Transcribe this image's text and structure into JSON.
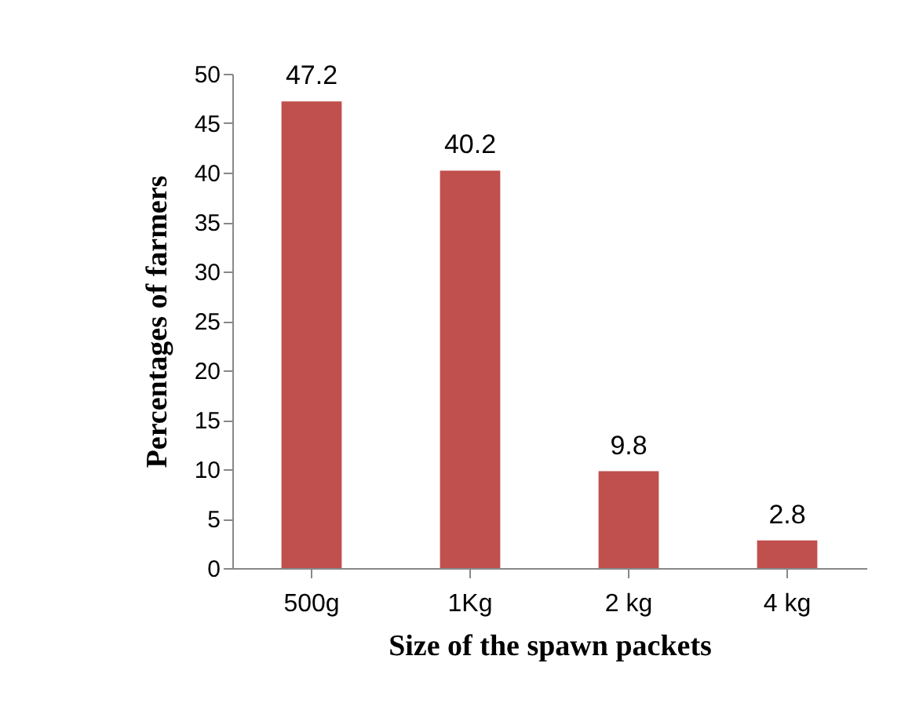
{
  "chart_data": {
    "type": "bar",
    "xlabel": "Size of the spawn packets",
    "ylabel": "Percentages of farmers",
    "categories": [
      "500g",
      "1Kg",
      "2 kg",
      "4 kg"
    ],
    "values": [
      47.2,
      40.2,
      9.8,
      2.8
    ],
    "color": "#c0504d",
    "ylim": [
      0,
      50
    ],
    "yticks": [
      0,
      5,
      10,
      15,
      20,
      25,
      30,
      35,
      40,
      45,
      50
    ],
    "grid": false,
    "data_labels": true
  }
}
